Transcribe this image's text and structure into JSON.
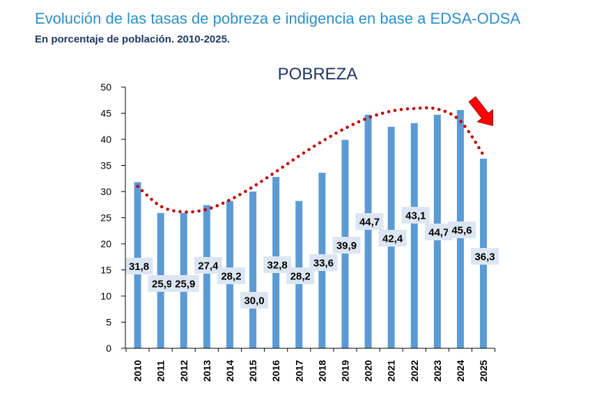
{
  "header": {
    "title": "Evolución de las tasas de pobreza e indigencia en base a EDSA-ODSA",
    "subtitle": "En porcentaje de población. 2010-2025."
  },
  "chart_data": {
    "type": "bar",
    "title": "POBREZA",
    "categories": [
      "2010",
      "2011",
      "2012",
      "2013",
      "2014",
      "2015",
      "2016",
      "2017",
      "2018",
      "2019",
      "2020",
      "2021",
      "2022",
      "2023",
      "2024",
      "2025"
    ],
    "values": [
      31.8,
      25.9,
      25.9,
      27.4,
      28.2,
      30.0,
      32.8,
      28.2,
      33.6,
      39.9,
      44.7,
      42.4,
      43.1,
      44.7,
      45.6,
      36.3
    ],
    "data_labels": [
      "31,8",
      "25,9",
      "25,9",
      "27,4",
      "28,2",
      "30,0",
      "32,8",
      "28,2",
      "33,6",
      "39,9",
      "44,7",
      "42,4",
      "43,1",
      "44,7",
      "45,6",
      "36,3"
    ],
    "ylim": [
      0,
      50
    ],
    "yticks": [
      0,
      5,
      10,
      15,
      20,
      25,
      30,
      35,
      40,
      45,
      50
    ],
    "xlabel": "",
    "ylabel": "",
    "trend": {
      "type": "polynomial",
      "style": "dotted",
      "values": [
        31.0,
        27.2,
        26.1,
        26.6,
        28.4,
        30.9,
        33.8,
        36.8,
        39.6,
        42.1,
        44.1,
        45.4,
        45.9,
        45.8,
        43.5,
        37.0
      ]
    },
    "annotation": "arrow-down-right",
    "colors": {
      "bar": "#5b9bd5",
      "label_box": "#dce6f2",
      "trend": "#c00000",
      "arrow": "#ff0000",
      "axis": "#000000"
    }
  }
}
